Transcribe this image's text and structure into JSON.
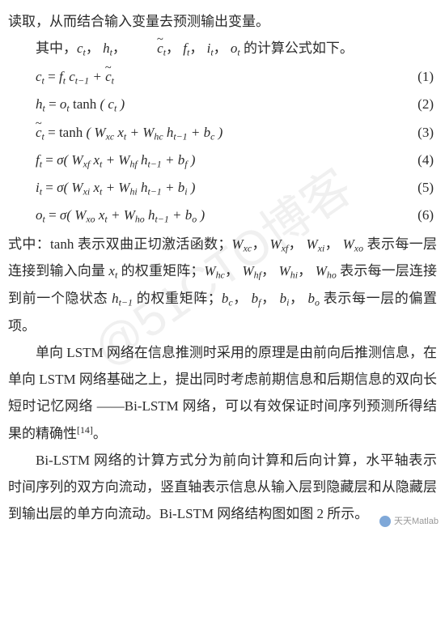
{
  "p0": "读取，从而结合输入变量去预测输出变量。",
  "p1_pre": "其中，",
  "p1_post": "的计算公式如下。",
  "eqs": [
    {
      "lhs": "c_t",
      "rhs_html": "f<sub>t</sub> c<sub>t−1</sub> + <span class='tilde-wrap'>c</span><sub>t</sub>",
      "num": "(1)"
    },
    {
      "lhs": "h_t",
      "rhs_html": "o<sub>t</sub> <span class='rm'>tanh</span> ( c<sub>t</sub> )",
      "num": "(2)"
    },
    {
      "lhs": "c_tilde_t",
      "rhs_html": "<span class='rm'>tanh</span> ( W<sub>xc</sub> x<sub>t</sub> + W<sub>hc</sub> h<sub>t−1</sub> + b<sub>c</sub> )",
      "num": "(3)"
    },
    {
      "lhs": "f_t",
      "rhs_html": "σ( W<sub>xf</sub> x<sub>t</sub> + W<sub>hf</sub> h<sub>t−1</sub> + b<sub>f</sub> )",
      "num": "(4)"
    },
    {
      "lhs": "i_t",
      "rhs_html": "σ( W<sub>xi</sub> x<sub>t</sub> + W<sub>hi</sub> h<sub>t−1</sub> + b<sub>i</sub> )",
      "num": "(5)"
    },
    {
      "lhs": "o_t",
      "rhs_html": "σ( W<sub>xo</sub> x<sub>t</sub> + W<sub>ho</sub> h<sub>t−1</sub> + b<sub>o</sub> )",
      "num": "(6)"
    }
  ],
  "p2_a": "式中：tanh 表示双曲正切激活函数；",
  "p2_b": "表示每一层连接到输入向量 ",
  "p2_c": " 的权重矩阵；",
  "p2_d": "表示每一层连接到前一个隐状态 ",
  "p2_e": " 的权重矩阵；",
  "p2_f": "表示每一层的偏置项。",
  "p3": "单向 LSTM 网络在信息推测时采用的原理是由前向后推测信息，在单向 LSTM 网络基础之上，提出同时考虑前期信息和后期信息的双向长短时记忆网络 ——Bi-LSTM 网络，可以有效保证时间序列预测所得结果的精确性",
  "p3_ref": "[14]",
  "p3_end": "。",
  "p4": "Bi-LSTM 网络的计算方式分为前向计算和后向计算，水平轴表示时间序列的双方向流动，竖直轴表示信息从输入层到隐藏层和从隐藏层到输出层的单方向流动。Bi-LSTM 网络结构图如图 2 所示。",
  "watermark": "@51CTO博客",
  "corner": "天天Matlab"
}
